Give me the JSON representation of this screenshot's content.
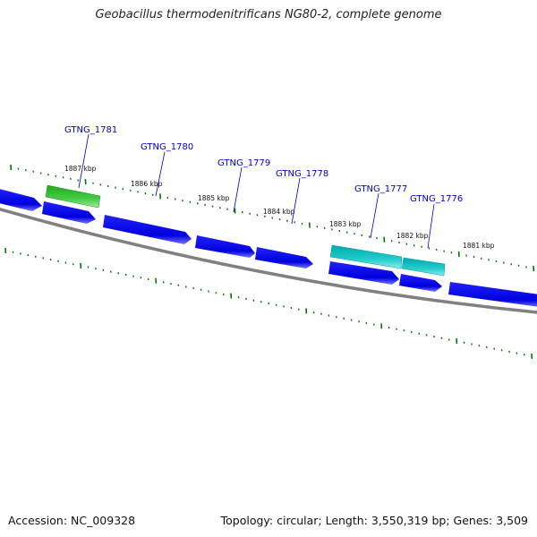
{
  "title": "Geobacillus thermodenitrificans NG80-2, complete genome",
  "footer": {
    "accession": "Accession: NC_009328",
    "summary": "Topology: circular; Length: 3,550,319 bp; Genes: 3,509"
  },
  "colors": {
    "backbone": "#808080",
    "gene_default": "#0000ee",
    "gene_highlight_green": "#33cc33",
    "gene_highlight_cyan": "#1fc9c9",
    "label": "#0000cc",
    "ruler": "#007700"
  },
  "kbp_labels": [
    "1887 kbp",
    "1886 kbp",
    "1885 kbp",
    "1884 kbp",
    "1883 kbp",
    "1882 kbp",
    "1881 kbp"
  ],
  "gene_labels": [
    "GTNG_1781",
    "GTNG_1780",
    "GTNG_1779",
    "GTNG_1778",
    "GTNG_1777",
    "GTNG_1776"
  ]
}
